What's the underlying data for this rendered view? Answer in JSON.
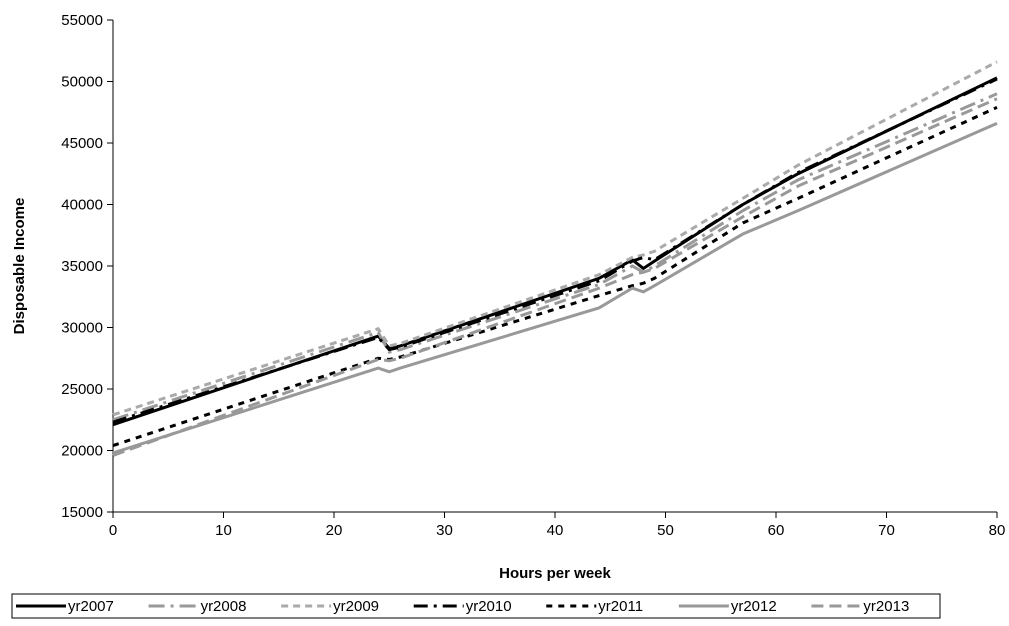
{
  "chart_data": {
    "type": "line",
    "x_label": "Hours per week",
    "y_label": "Disposable Income",
    "x": [
      0,
      24,
      25,
      26,
      44,
      47,
      48,
      49,
      57,
      62,
      80
    ],
    "xlim": [
      0,
      80
    ],
    "xticks": [
      0,
      10,
      20,
      30,
      40,
      50,
      60,
      70,
      80
    ],
    "ylim": [
      15000,
      55000
    ],
    "yticks": [
      15000,
      20000,
      25000,
      30000,
      35000,
      40000,
      45000,
      50000,
      55000
    ],
    "grid": false,
    "legend": "bottom",
    "series": [
      {
        "name": "yr2007",
        "color": "#000000",
        "dash": "none",
        "values": [
          22100,
          29300,
          28300,
          28500,
          34000,
          35500,
          34800,
          35400,
          40000,
          42500,
          50300
        ]
      },
      {
        "name": "yr2008",
        "color": "#999999",
        "dash": "16,6,3,6",
        "values": [
          22500,
          29600,
          28000,
          28200,
          33500,
          35000,
          34500,
          35000,
          39500,
          42000,
          49000
        ]
      },
      {
        "name": "yr2009",
        "color": "#aaaaaa",
        "dash": "7,5",
        "values": [
          22900,
          29900,
          28500,
          28700,
          34300,
          35700,
          35900,
          36200,
          40500,
          43200,
          51600
        ]
      },
      {
        "name": "yr2010",
        "color": "#000000",
        "dash": "14,6,3,6",
        "values": [
          22300,
          29200,
          28200,
          28400,
          33800,
          35400,
          35700,
          35500,
          40000,
          42600,
          50200
        ]
      },
      {
        "name": "yr2011",
        "color": "#000000",
        "dash": "6,6",
        "values": [
          20400,
          27500,
          27400,
          27600,
          32600,
          33400,
          33600,
          34000,
          38500,
          40500,
          47900
        ]
      },
      {
        "name": "yr2012",
        "color": "#999999",
        "dash": "none",
        "values": [
          19800,
          26700,
          26400,
          26700,
          31600,
          33200,
          32900,
          33400,
          37600,
          39500,
          46600
        ]
      },
      {
        "name": "yr2013",
        "color": "#999999",
        "dash": "12,6",
        "values": [
          19600,
          27400,
          27300,
          27500,
          33200,
          34300,
          34500,
          34800,
          39000,
          41500,
          48600
        ]
      }
    ]
  }
}
